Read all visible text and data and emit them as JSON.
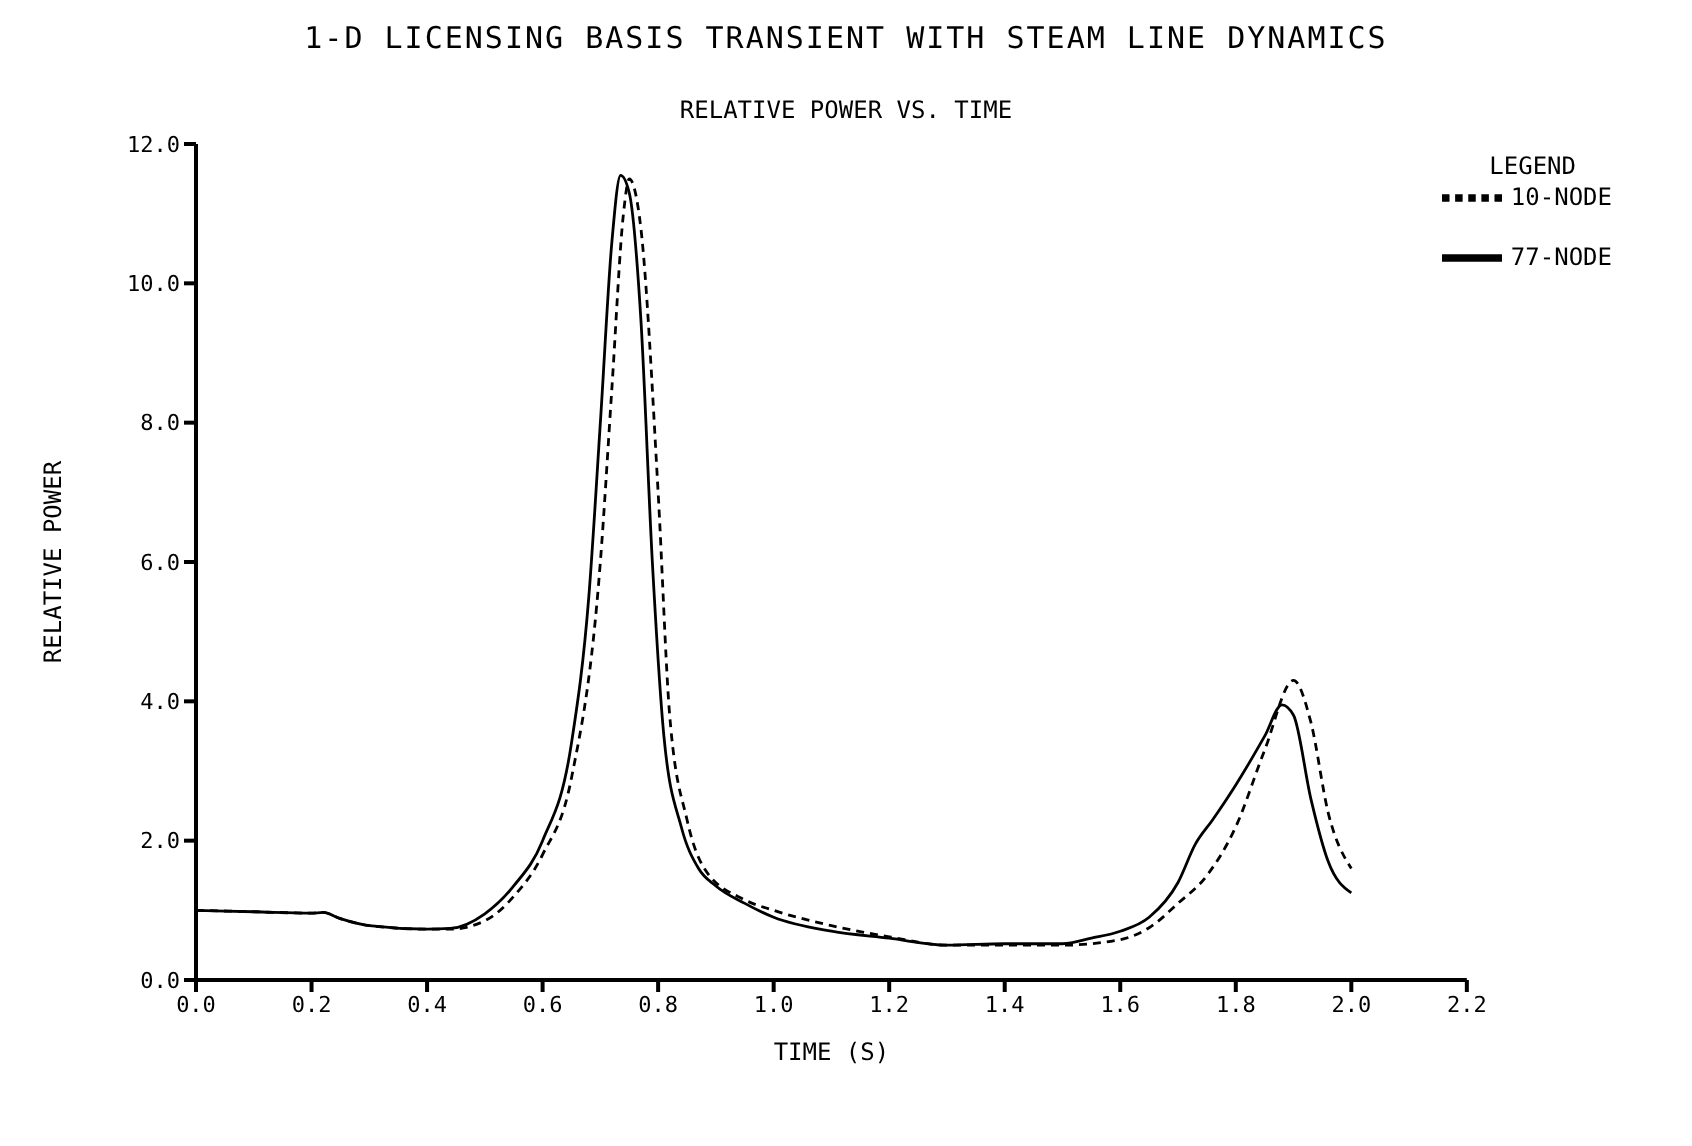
{
  "chart_data": {
    "type": "line",
    "title": "1-D LICENSING BASIS TRANSIENT WITH STEAM LINE DYNAMICS",
    "subtitle": "RELATIVE POWER VS. TIME",
    "xlabel": "TIME (S)",
    "ylabel": "RELATIVE POWER",
    "legend_title": "LEGEND",
    "legend": "top right",
    "grid": false,
    "marker": "none",
    "xlim": [
      0,
      2.2
    ],
    "xticks": [
      {
        "value": 0,
        "label": "0.0"
      },
      0.2,
      0.4,
      0.6,
      0.8,
      {
        "value": 1,
        "label": "1.0"
      },
      1.2,
      1.4,
      1.6,
      1.8,
      {
        "value": 2,
        "label": "2.0"
      },
      2.2
    ],
    "ylim": [
      0,
      12
    ],
    "yticks": [
      {
        "value": 0,
        "label": "0.0"
      },
      {
        "value": 2,
        "label": "2.0"
      },
      {
        "value": 4,
        "label": "4.0"
      },
      {
        "value": 6,
        "label": "6.0"
      },
      {
        "value": 8,
        "label": "8.0"
      },
      {
        "value": 10,
        "label": "10.0"
      },
      {
        "value": 12,
        "label": "12.0"
      }
    ],
    "series": [
      {
        "name": "77-NODE",
        "color": "#000000",
        "line_style": "solid",
        "x": [
          0,
          0.1,
          0.2,
          0.22,
          0.25,
          0.3,
          0.4,
          0.44,
          0.5,
          0.55,
          0.6,
          0.65,
          0.68,
          0.7,
          0.72,
          0.735,
          0.75,
          0.77,
          0.79,
          0.81,
          0.84,
          0.87,
          0.9,
          0.95,
          1.0,
          1.1,
          1.2,
          1.3,
          1.4,
          1.5,
          1.55,
          1.6,
          1.65,
          1.7,
          1.73,
          1.76,
          1.8,
          1.85,
          1.88,
          1.9,
          1.93,
          1.96,
          2.0
        ],
        "values": [
          1.0,
          0.98,
          0.96,
          0.97,
          0.88,
          0.78,
          0.73,
          0.74,
          0.95,
          1.35,
          2.0,
          3.4,
          5.5,
          8.0,
          10.6,
          11.55,
          11.3,
          9.5,
          6.0,
          3.5,
          2.2,
          1.6,
          1.35,
          1.1,
          0.9,
          0.7,
          0.6,
          0.5,
          0.52,
          0.52,
          0.6,
          0.7,
          0.9,
          1.4,
          1.95,
          2.3,
          2.8,
          3.5,
          3.95,
          3.8,
          2.6,
          1.7,
          1.25
        ]
      },
      {
        "name": "10-NODE",
        "color": "#000000",
        "line_style": "dashed",
        "x": [
          0,
          0.1,
          0.2,
          0.22,
          0.25,
          0.3,
          0.4,
          0.44,
          0.5,
          0.55,
          0.6,
          0.65,
          0.7,
          0.72,
          0.74,
          0.75,
          0.77,
          0.8,
          0.82,
          0.85,
          0.88,
          0.95,
          1.0,
          1.1,
          1.2,
          1.3,
          1.5,
          1.6,
          1.65,
          1.7,
          1.75,
          1.8,
          1.85,
          1.9,
          1.93,
          1.96,
          2.0
        ],
        "values": [
          1.0,
          0.98,
          0.96,
          0.97,
          0.88,
          0.78,
          0.73,
          0.73,
          0.85,
          1.2,
          1.8,
          2.9,
          6.0,
          8.5,
          11.0,
          11.5,
          10.8,
          7.0,
          3.8,
          2.3,
          1.6,
          1.15,
          1.0,
          0.78,
          0.62,
          0.5,
          0.5,
          0.58,
          0.75,
          1.1,
          1.5,
          2.2,
          3.3,
          4.3,
          3.7,
          2.4,
          1.6
        ]
      }
    ]
  }
}
